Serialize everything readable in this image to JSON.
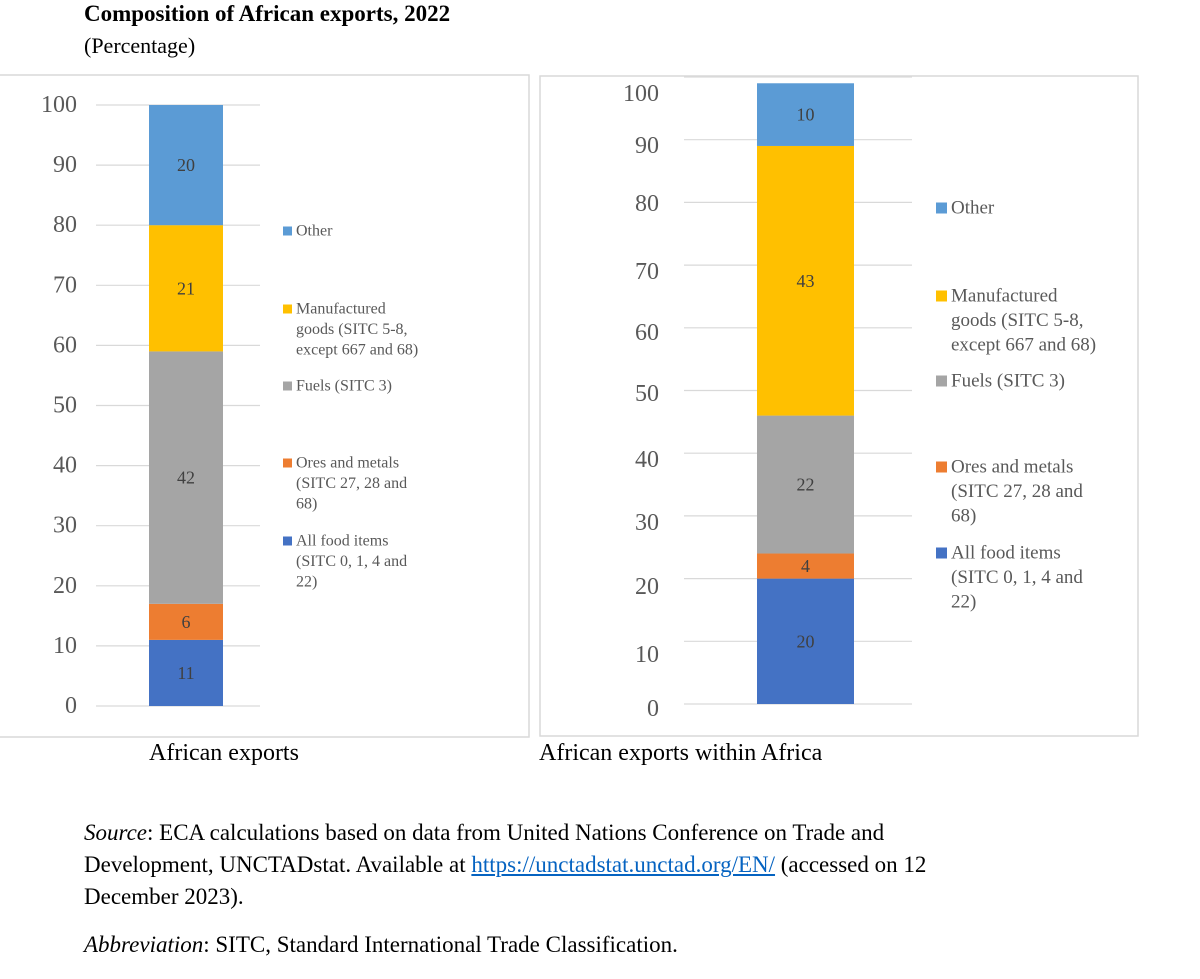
{
  "title": "Composition of African exports, 2022",
  "subtitle": "(Percentage)",
  "colors": {
    "all_food": "#4472c4",
    "ores": "#ed7d31",
    "fuels": "#a5a5a5",
    "manufactured": "#ffc000",
    "other": "#5b9bd5"
  },
  "chart_data": [
    {
      "type": "bar",
      "stacked": true,
      "category": "African exports",
      "ylim": [
        0,
        100
      ],
      "yticks": [
        0,
        10,
        20,
        30,
        40,
        50,
        60,
        70,
        80,
        90,
        100
      ],
      "series": [
        {
          "name": "All food items (SITC 0, 1, 4 and 22)",
          "value": 11,
          "color": "#4472c4"
        },
        {
          "name": "Ores and metals (SITC 27, 28 and 68)",
          "value": 6,
          "color": "#ed7d31"
        },
        {
          "name": "Fuels (SITC 3)",
          "value": 42,
          "color": "#a5a5a5"
        },
        {
          "name": "Manufactured goods (SITC 5-8, except 667 and 68)",
          "value": 21,
          "color": "#ffc000"
        },
        {
          "name": "Other",
          "value": 20,
          "color": "#5b9bd5"
        }
      ],
      "legend": [
        {
          "color": "#5b9bd5",
          "lines": [
            "Other"
          ]
        },
        {
          "color": "#ffc000",
          "lines": [
            "Manufactured",
            "goods (SITC 5-8,",
            "except 667 and 68)"
          ]
        },
        {
          "color": "#a5a5a5",
          "lines": [
            "Fuels (SITC 3)"
          ]
        },
        {
          "color": "#ed7d31",
          "lines": [
            "Ores and metals",
            "(SITC 27, 28 and",
            "68)"
          ]
        },
        {
          "color": "#4472c4",
          "lines": [
            "All food items",
            "(SITC 0, 1, 4 and",
            "22)"
          ]
        }
      ]
    },
    {
      "type": "bar",
      "stacked": true,
      "category": "African exports within Africa",
      "ylim": [
        0,
        100
      ],
      "yticks": [
        0,
        10,
        20,
        30,
        40,
        50,
        60,
        70,
        80,
        90,
        100
      ],
      "series": [
        {
          "name": "All food items (SITC 0, 1, 4 and 22)",
          "value": 20,
          "color": "#4472c4"
        },
        {
          "name": "Ores and metals (SITC 27, 28 and 68)",
          "value": 4,
          "color": "#ed7d31"
        },
        {
          "name": "Fuels (SITC 3)",
          "value": 22,
          "color": "#a5a5a5"
        },
        {
          "name": "Manufactured goods (SITC 5-8, except 667 and 68)",
          "value": 43,
          "color": "#ffc000"
        },
        {
          "name": "Other",
          "value": 10,
          "color": "#5b9bd5"
        }
      ],
      "legend": [
        {
          "color": "#5b9bd5",
          "lines": [
            "Other"
          ]
        },
        {
          "color": "#ffc000",
          "lines": [
            "Manufactured",
            "goods (SITC 5-8,",
            "except 667 and 68)"
          ]
        },
        {
          "color": "#a5a5a5",
          "lines": [
            "Fuels (SITC 3)"
          ]
        },
        {
          "color": "#ed7d31",
          "lines": [
            "Ores and metals",
            "(SITC 27, 28 and",
            "68)"
          ]
        },
        {
          "color": "#4472c4",
          "lines": [
            "All food items",
            "(SITC 0, 1, 4 and",
            "22)"
          ]
        }
      ]
    }
  ],
  "source": {
    "label": "Source",
    "text_before_link": ": ECA calculations based on data from United Nations Conference on Trade and Development, UNCTADstat. Available at ",
    "link_text": "https://unctadstat.unctad.org/EN/",
    "text_after_link": " (accessed on 12 December 2023)."
  },
  "abbreviation": {
    "label": "Abbreviation",
    "text": ": SITC, Standard International Trade Classification."
  }
}
